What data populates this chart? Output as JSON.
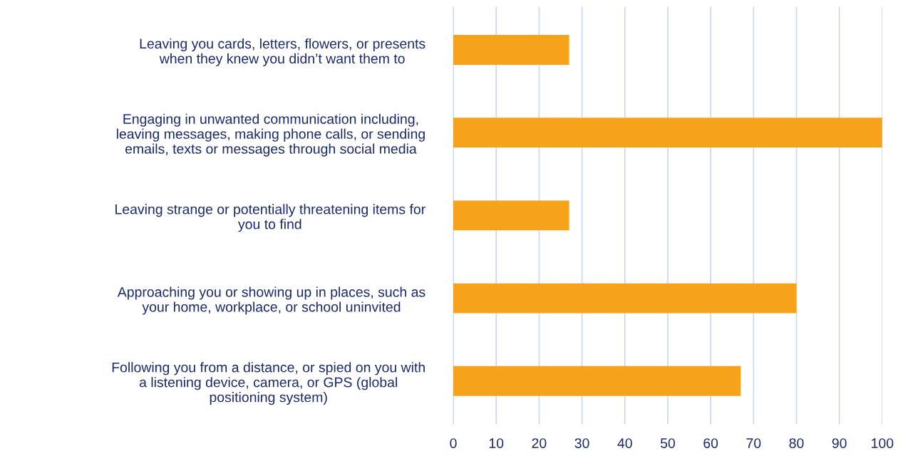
{
  "chart_data": {
    "type": "bar",
    "orientation": "horizontal",
    "categories": [
      "Leaving you cards, letters, flowers, or presents\nwhen they knew you didn’t want them to",
      "Engaging in unwanted communication including,\nleaving messages, making phone calls, or sending\nemails, texts or messages through social media",
      "Leaving strange or potentially threatening items for\nyou to find",
      "Approaching you or showing up in places, such as\nyour home, workplace, or school uninvited",
      "Following you from a distance, or spied on you with\na listening device, camera, or GPS (global\npositioning system)"
    ],
    "values": [
      27,
      100,
      27,
      80,
      67
    ],
    "color": "#f7a21b",
    "xlim": [
      0,
      100
    ],
    "xticks": [
      0,
      10,
      20,
      30,
      40,
      50,
      60,
      70,
      80,
      90,
      100
    ],
    "grid": "x",
    "legend": false
  }
}
